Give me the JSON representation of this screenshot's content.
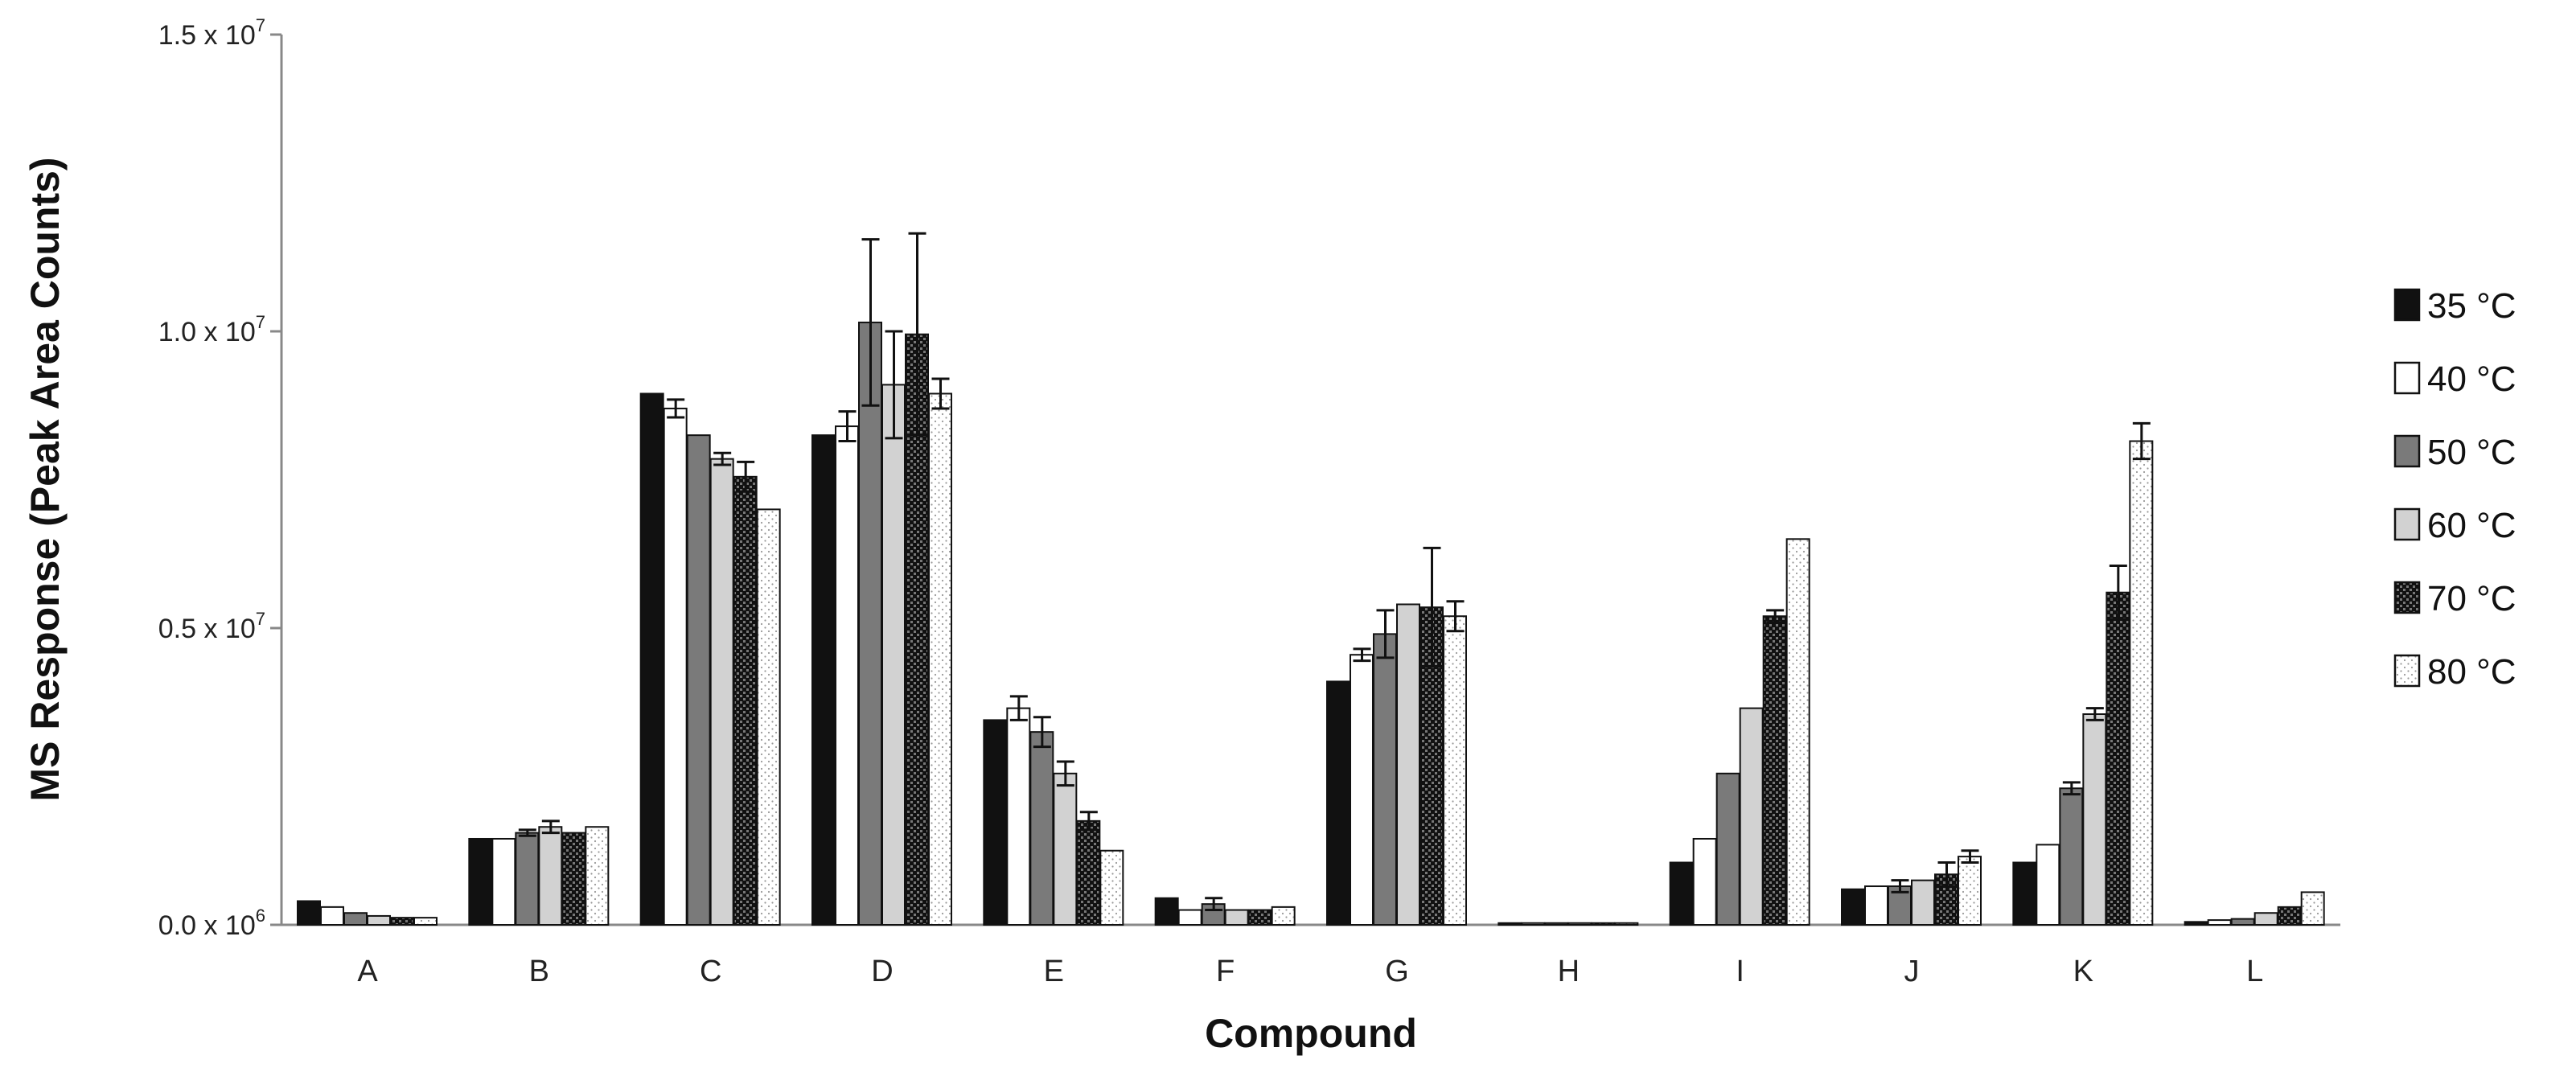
{
  "chart_data": {
    "type": "bar",
    "xlabel": "Compound",
    "ylabel": "MS Response (Peak Area Counts)",
    "ylim": [
      0,
      15000000
    ],
    "y_ticks": [
      {
        "value": 0,
        "mantissa": "0.0",
        "exponent": "6"
      },
      {
        "value": 5000000,
        "mantissa": "0.5",
        "exponent": "7"
      },
      {
        "value": 10000000,
        "mantissa": "1.0",
        "exponent": "7"
      },
      {
        "value": 15000000,
        "mantissa": "1.5",
        "exponent": "7"
      }
    ],
    "categories": [
      "A",
      "B",
      "C",
      "D",
      "E",
      "F",
      "G",
      "H",
      "I",
      "J",
      "K",
      "L"
    ],
    "legend_position": "right",
    "series": [
      {
        "name": "35 °C",
        "pattern": "solid-black",
        "values": [
          400000,
          1450000,
          8950000,
          8250000,
          3450000,
          450000,
          4100000,
          30000,
          1050000,
          600000,
          1050000,
          50000
        ],
        "errors": [
          0,
          0,
          0,
          0,
          0,
          0,
          0,
          0,
          0,
          0,
          0,
          0
        ]
      },
      {
        "name": "40 °C",
        "pattern": "white",
        "values": [
          300000,
          1450000,
          8700000,
          8400000,
          3650000,
          250000,
          4550000,
          30000,
          1450000,
          650000,
          1350000,
          80000
        ],
        "errors": [
          0,
          0,
          150000,
          250000,
          200000,
          0,
          100000,
          0,
          0,
          0,
          0,
          0
        ]
      },
      {
        "name": "50 °C",
        "pattern": "dark-gray",
        "values": [
          200000,
          1550000,
          8250000,
          10150000,
          3250000,
          350000,
          4900000,
          30000,
          2550000,
          650000,
          2300000,
          100000
        ],
        "errors": [
          0,
          50000,
          0,
          1400000,
          250000,
          100000,
          400000,
          0,
          0,
          100000,
          100000,
          0
        ]
      },
      {
        "name": "60 °C",
        "pattern": "light-gray",
        "values": [
          150000,
          1650000,
          7850000,
          9100000,
          2550000,
          250000,
          5400000,
          30000,
          3650000,
          750000,
          3550000,
          200000
        ],
        "errors": [
          0,
          100000,
          100000,
          900000,
          200000,
          0,
          0,
          0,
          0,
          0,
          100000,
          0
        ]
      },
      {
        "name": "70 °C",
        "pattern": "checker",
        "values": [
          120000,
          1550000,
          7550000,
          9950000,
          1750000,
          250000,
          5350000,
          30000,
          5200000,
          850000,
          5600000,
          300000
        ],
        "errors": [
          0,
          0,
          250000,
          1700000,
          150000,
          0,
          1000000,
          0,
          100000,
          200000,
          450000,
          0
        ]
      },
      {
        "name": "80 °C",
        "pattern": "dotted",
        "values": [
          120000,
          1650000,
          7000000,
          8950000,
          1250000,
          300000,
          5200000,
          30000,
          6500000,
          1150000,
          8150000,
          550000
        ],
        "errors": [
          0,
          0,
          0,
          250000,
          0,
          0,
          250000,
          0,
          0,
          100000,
          300000,
          0
        ]
      }
    ]
  }
}
